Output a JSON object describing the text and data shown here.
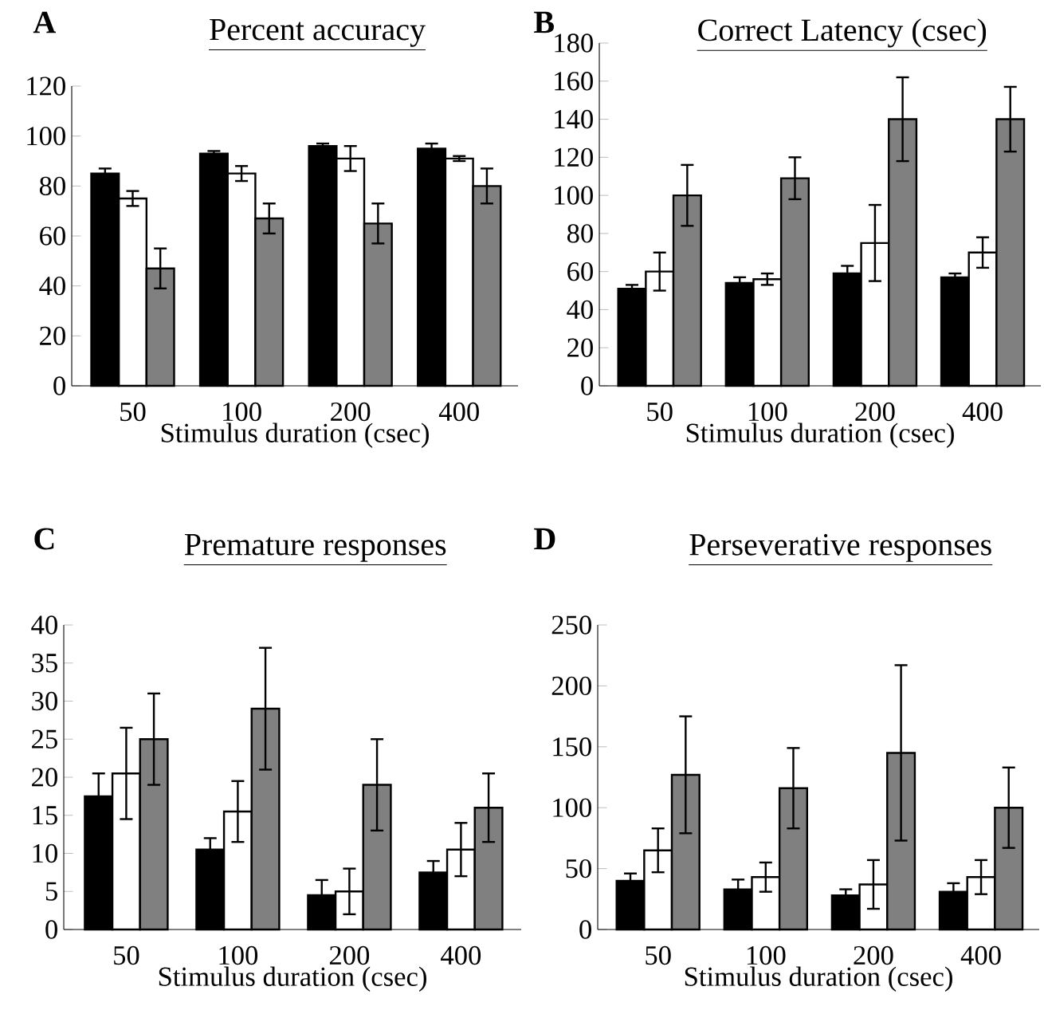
{
  "chart_data": [
    {
      "type": "bar",
      "title": "Percent accuracy",
      "xlabel": "Stimulus duration (csec)",
      "annotations": [
        "A"
      ],
      "categories": [
        "50",
        "100",
        "200",
        "400"
      ],
      "ylim": [
        0,
        120
      ],
      "yticks": [
        0,
        20,
        40,
        60,
        80,
        100,
        120
      ],
      "series": [
        {
          "color": "#000000",
          "values": [
            85,
            93,
            96,
            95
          ],
          "errors": [
            2,
            1,
            1,
            2
          ]
        },
        {
          "color": "#ffffff",
          "values": [
            75,
            85,
            91,
            91
          ],
          "errors": [
            3,
            3,
            5,
            1
          ]
        },
        {
          "color": "#808080",
          "values": [
            47,
            67,
            65,
            80
          ],
          "errors": [
            8,
            6,
            8,
            7
          ]
        }
      ]
    },
    {
      "type": "bar",
      "title": "Correct Latency (csec)",
      "xlabel": "Stimulus duration (csec)",
      "annotations": [
        "B"
      ],
      "categories": [
        "50",
        "100",
        "200",
        "400"
      ],
      "ylim": [
        0,
        180
      ],
      "yticks": [
        0,
        20,
        40,
        60,
        80,
        100,
        120,
        140,
        160,
        180
      ],
      "series": [
        {
          "color": "#000000",
          "values": [
            51,
            54,
            59,
            57
          ],
          "errors": [
            2,
            3,
            4,
            2
          ]
        },
        {
          "color": "#ffffff",
          "values": [
            60,
            56,
            75,
            70
          ],
          "errors": [
            10,
            3,
            20,
            8
          ]
        },
        {
          "color": "#808080",
          "values": [
            100,
            109,
            140,
            140
          ],
          "errors": [
            16,
            11,
            22,
            17
          ]
        }
      ]
    },
    {
      "type": "bar",
      "title": "Premature responses",
      "xlabel": "Stimulus duration (csec)",
      "annotations": [
        "C"
      ],
      "categories": [
        "50",
        "100",
        "200",
        "400"
      ],
      "ylim": [
        0,
        40
      ],
      "yticks": [
        0,
        5,
        10,
        15,
        20,
        25,
        30,
        35,
        40
      ],
      "series": [
        {
          "color": "#000000",
          "values": [
            17.5,
            10.5,
            4.5,
            7.5
          ],
          "errors": [
            3,
            1.5,
            2,
            1.5
          ]
        },
        {
          "color": "#ffffff",
          "values": [
            20.5,
            15.5,
            5,
            10.5
          ],
          "errors": [
            6,
            4,
            3,
            3.5
          ]
        },
        {
          "color": "#808080",
          "values": [
            25,
            29,
            19,
            16
          ],
          "errors": [
            6,
            8,
            6,
            4.5
          ]
        }
      ]
    },
    {
      "type": "bar",
      "title": "Perseverative responses",
      "xlabel": "Stimulus duration (csec)",
      "annotations": [
        "D"
      ],
      "categories": [
        "50",
        "100",
        "200",
        "400"
      ],
      "ylim": [
        0,
        250
      ],
      "yticks": [
        0,
        50,
        100,
        150,
        200,
        250
      ],
      "series": [
        {
          "color": "#000000",
          "values": [
            40,
            33,
            28,
            31
          ],
          "errors": [
            6,
            8,
            5,
            7
          ]
        },
        {
          "color": "#ffffff",
          "values": [
            65,
            43,
            37,
            43
          ],
          "errors": [
            18,
            12,
            20,
            14
          ]
        },
        {
          "color": "#808080",
          "values": [
            127,
            116,
            145,
            100
          ],
          "errors": [
            48,
            33,
            72,
            33
          ]
        }
      ]
    }
  ]
}
